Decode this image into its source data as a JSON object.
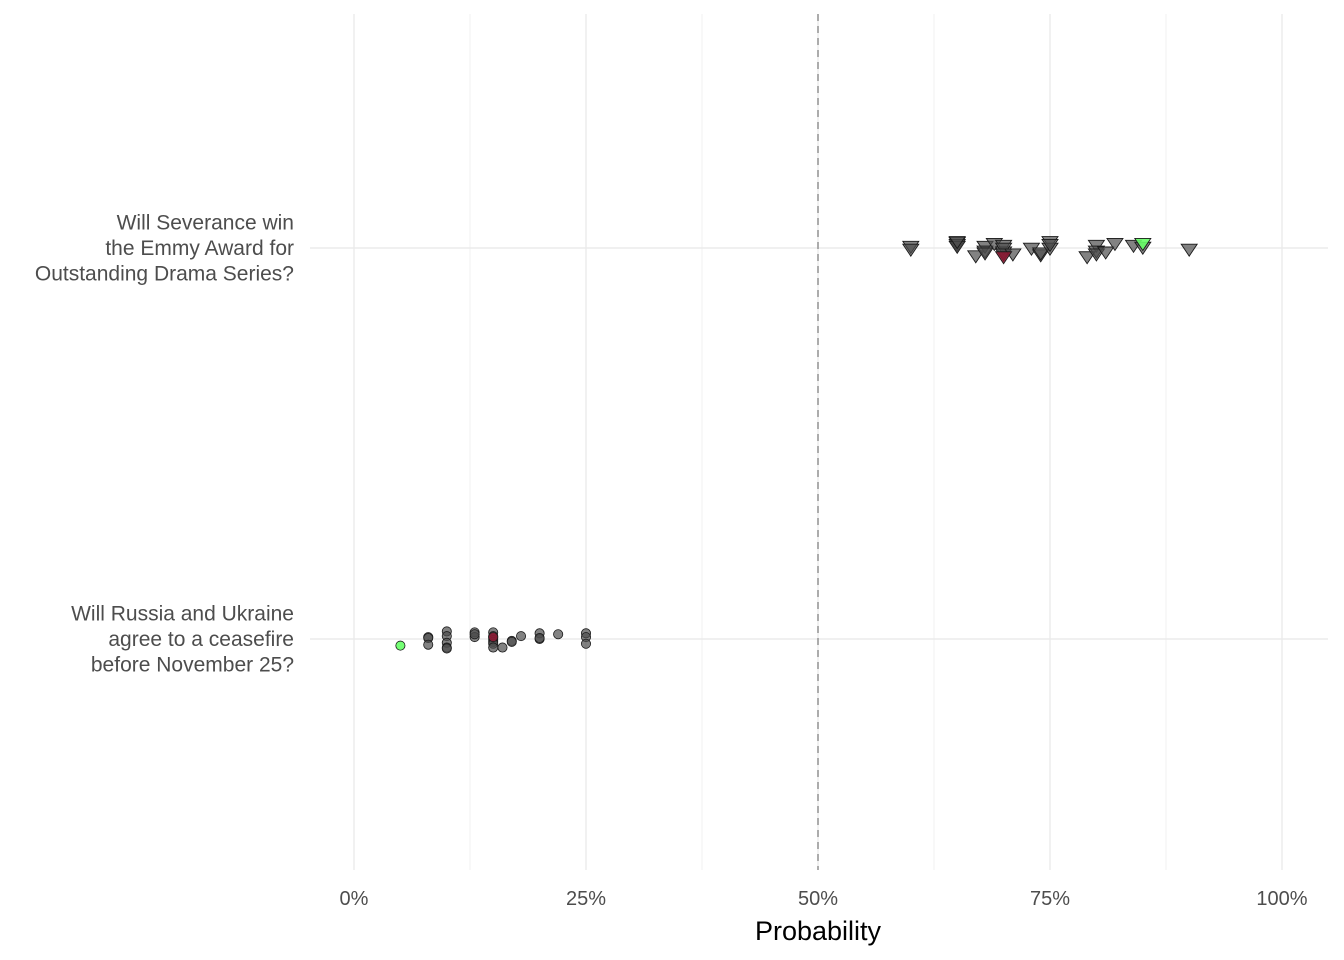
{
  "chart_data": {
    "type": "scatter",
    "xlabel": "Probability",
    "xlim": [
      0,
      1
    ],
    "x_ticks": [
      {
        "value": 0,
        "label": "0%"
      },
      {
        "value": 0.25,
        "label": "25%"
      },
      {
        "value": 0.5,
        "label": "50%"
      },
      {
        "value": 0.75,
        "label": "75%"
      },
      {
        "value": 1,
        "label": "100%"
      }
    ],
    "reference_line": 0.5,
    "grid": true,
    "colors": {
      "default": "#4d4d4d",
      "highlight_green": "#66ff66",
      "highlight_red": "#8b1a33",
      "reference": "#999999"
    },
    "categories": [
      {
        "id": "severance",
        "label_lines": [
          "Will Severance win",
          "the Emmy Award for",
          "Outstanding Drama Series?"
        ],
        "shape": "triangle-down",
        "points": [
          {
            "x": 0.6,
            "jitter": 0.02
          },
          {
            "x": 0.6,
            "jitter": -0.01
          },
          {
            "x": 0.65,
            "jitter": 0.06
          },
          {
            "x": 0.65,
            "jitter": 0.04
          },
          {
            "x": 0.65,
            "jitter": 0.02
          },
          {
            "x": 0.65,
            "jitter": 0.07
          },
          {
            "x": 0.67,
            "jitter": -0.08
          },
          {
            "x": 0.68,
            "jitter": 0.02
          },
          {
            "x": 0.68,
            "jitter": -0.03
          },
          {
            "x": 0.68,
            "jitter": -0.05
          },
          {
            "x": 0.69,
            "jitter": 0.05
          },
          {
            "x": 0.7,
            "jitter": 0.03
          },
          {
            "x": 0.7,
            "jitter": -0.04
          },
          {
            "x": 0.7,
            "jitter": 0.0
          },
          {
            "x": 0.7,
            "jitter": -0.06
          },
          {
            "x": 0.71,
            "jitter": -0.06
          },
          {
            "x": 0.73,
            "jitter": 0.0
          },
          {
            "x": 0.74,
            "jitter": -0.07
          },
          {
            "x": 0.74,
            "jitter": -0.05
          },
          {
            "x": 0.75,
            "jitter": 0.07
          },
          {
            "x": 0.75,
            "jitter": 0.0
          },
          {
            "x": 0.75,
            "jitter": 0.04
          },
          {
            "x": 0.79,
            "jitter": -0.09
          },
          {
            "x": 0.8,
            "jitter": 0.03
          },
          {
            "x": 0.8,
            "jitter": -0.03
          },
          {
            "x": 0.8,
            "jitter": -0.06
          },
          {
            "x": 0.81,
            "jitter": -0.04
          },
          {
            "x": 0.82,
            "jitter": 0.05
          },
          {
            "x": 0.84,
            "jitter": 0.03
          },
          {
            "x": 0.85,
            "jitter": 0.01
          },
          {
            "x": 0.9,
            "jitter": -0.01
          },
          {
            "x": 0.7,
            "jitter": -0.09,
            "highlight": "red"
          },
          {
            "x": 0.85,
            "jitter": 0.05,
            "highlight": "green"
          }
        ]
      },
      {
        "id": "ceasefire",
        "label_lines": [
          "Will Russia and Ukraine",
          "agree to a ceasefire",
          "before November 25?"
        ],
        "shape": "circle",
        "points": [
          {
            "x": 0.08,
            "jitter": 0.02
          },
          {
            "x": 0.08,
            "jitter": 0.01
          },
          {
            "x": 0.08,
            "jitter": -0.06
          },
          {
            "x": 0.1,
            "jitter": 0.08
          },
          {
            "x": 0.1,
            "jitter": 0.03
          },
          {
            "x": 0.1,
            "jitter": -0.04
          },
          {
            "x": 0.1,
            "jitter": -0.09
          },
          {
            "x": 0.1,
            "jitter": -0.1
          },
          {
            "x": 0.13,
            "jitter": 0.07
          },
          {
            "x": 0.13,
            "jitter": 0.02
          },
          {
            "x": 0.13,
            "jitter": 0.05
          },
          {
            "x": 0.15,
            "jitter": 0.07
          },
          {
            "x": 0.15,
            "jitter": 0.03
          },
          {
            "x": 0.15,
            "jitter": 0.01
          },
          {
            "x": 0.15,
            "jitter": -0.01
          },
          {
            "x": 0.15,
            "jitter": -0.03
          },
          {
            "x": 0.15,
            "jitter": -0.05
          },
          {
            "x": 0.15,
            "jitter": -0.09
          },
          {
            "x": 0.16,
            "jitter": -0.09
          },
          {
            "x": 0.17,
            "jitter": -0.02
          },
          {
            "x": 0.17,
            "jitter": -0.03
          },
          {
            "x": 0.18,
            "jitter": 0.03
          },
          {
            "x": 0.2,
            "jitter": 0.06
          },
          {
            "x": 0.2,
            "jitter": 0.0
          },
          {
            "x": 0.2,
            "jitter": 0.01
          },
          {
            "x": 0.22,
            "jitter": 0.05
          },
          {
            "x": 0.25,
            "jitter": 0.06
          },
          {
            "x": 0.25,
            "jitter": 0.02
          },
          {
            "x": 0.25,
            "jitter": -0.05
          },
          {
            "x": 0.15,
            "jitter": 0.02,
            "highlight": "red"
          },
          {
            "x": 0.05,
            "jitter": -0.07,
            "highlight": "green"
          }
        ]
      }
    ]
  }
}
